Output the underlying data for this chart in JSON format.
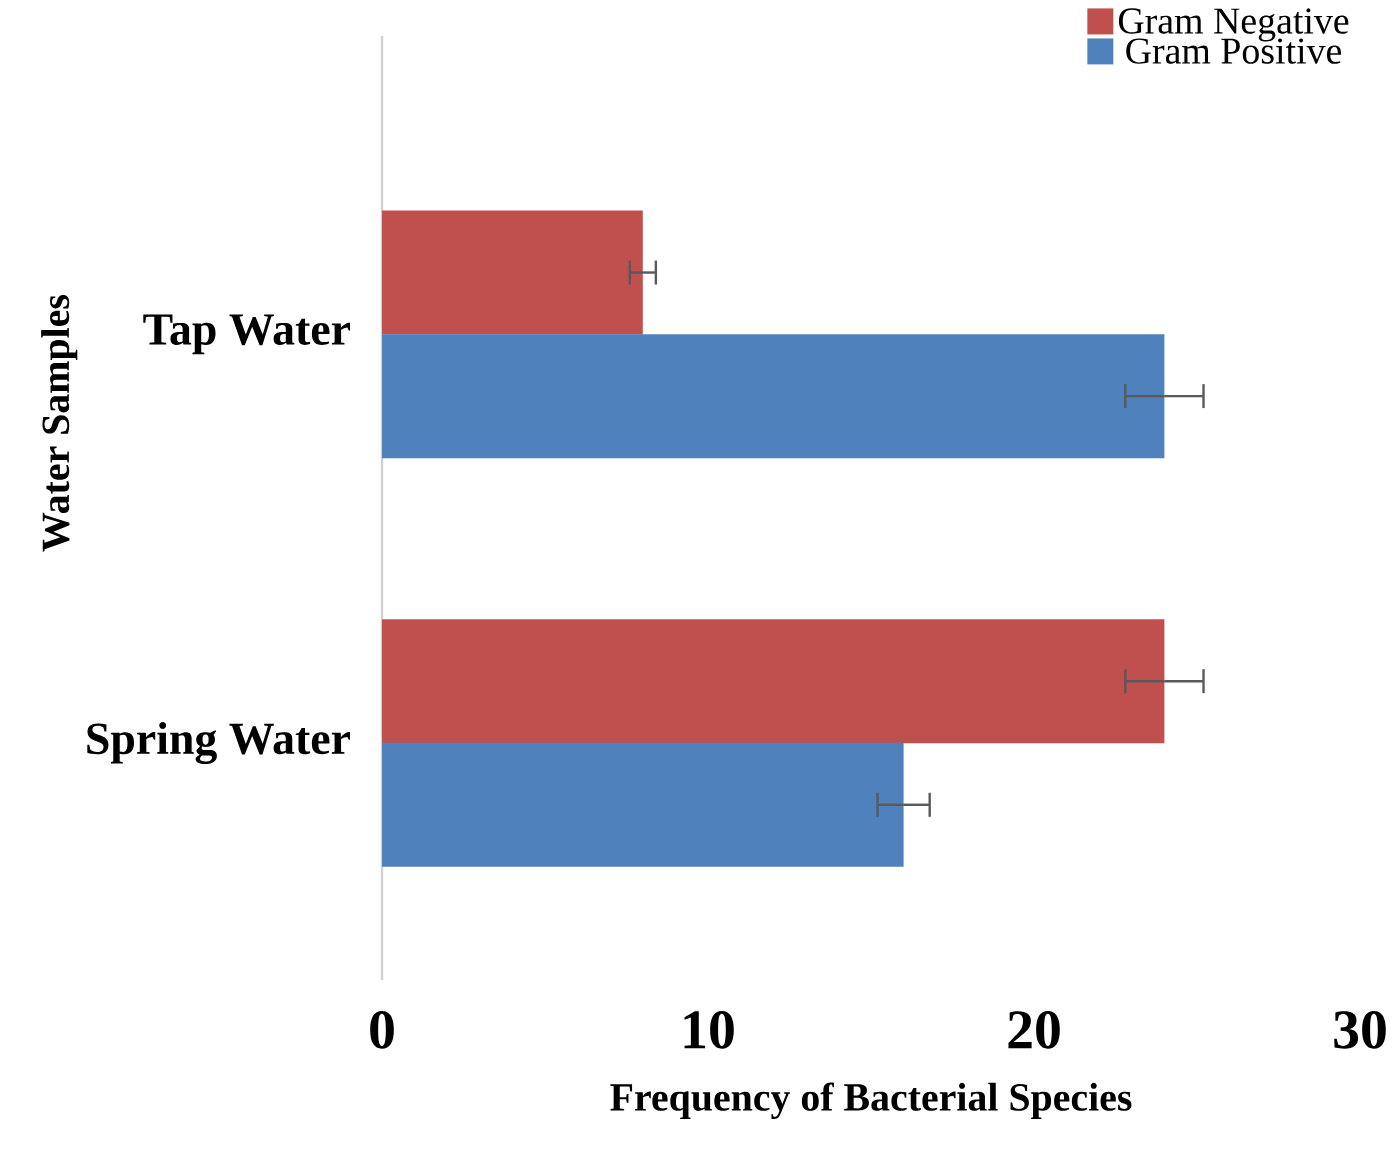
{
  "chart_data": {
    "type": "bar",
    "orientation": "horizontal",
    "xlabel": "Frequency of Bacterial Species",
    "ylabel": "Water Samples",
    "categories": [
      "Tap Water",
      "Spring Water"
    ],
    "xlim": [
      0,
      30
    ],
    "xticks": [
      0,
      10,
      20,
      30
    ],
    "legend": "top right",
    "series": [
      {
        "name": "Gram Negative",
        "color": "#c0504d",
        "values": [
          8,
          24
        ],
        "errors": [
          0.4,
          1.2
        ]
      },
      {
        "name": "Gram Positive",
        "color": "#4f81bd",
        "values": [
          24,
          16
        ],
        "errors": [
          1.2,
          0.8
        ]
      }
    ]
  }
}
